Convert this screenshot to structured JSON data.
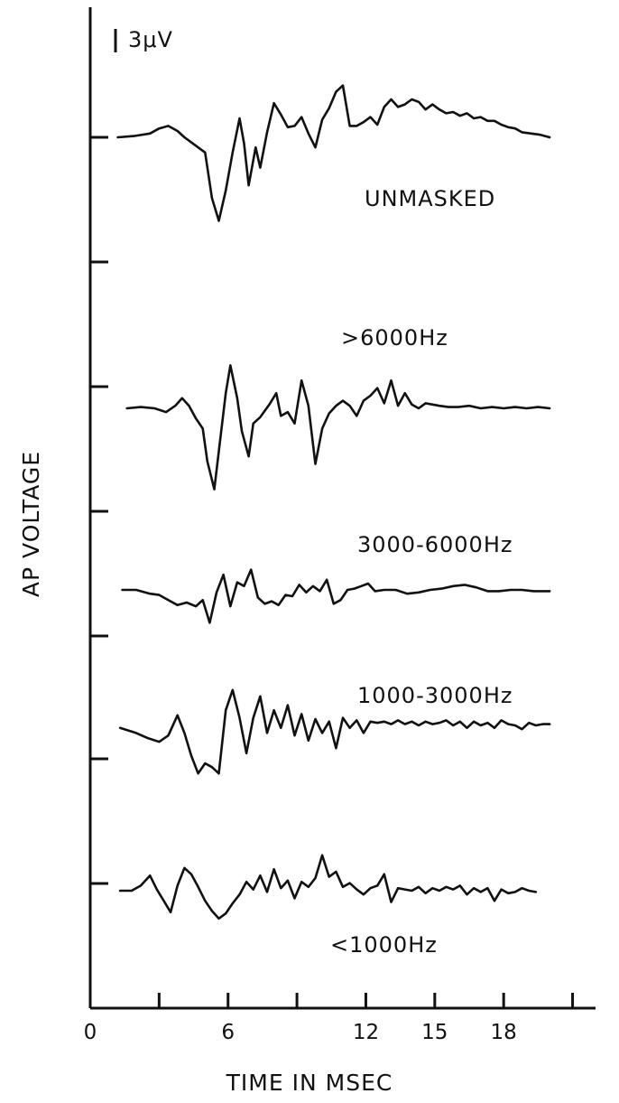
{
  "chart_data": {
    "type": "line",
    "title": "",
    "xlabel": "TIME IN MSEC",
    "ylabel": "AP VOLTAGE",
    "scale_bar": "3μV",
    "xlim": [
      0,
      22
    ],
    "x_ticks": [
      0,
      3,
      6,
      9,
      12,
      15,
      18,
      21
    ],
    "x_tick_labels": [
      "0",
      "",
      "6",
      "",
      "12",
      "15",
      "18",
      ""
    ],
    "grid": false,
    "legend": "none",
    "series": [
      {
        "name": "UNMASKED",
        "x": [
          1.2,
          1.9,
          2.6,
          3.0,
          3.4,
          3.8,
          4.1,
          4.4,
          4.7,
          5.0,
          5.3,
          5.6,
          5.9,
          6.2,
          6.5,
          6.7,
          6.9,
          7.2,
          7.4,
          7.7,
          8.0,
          8.3,
          8.6,
          8.9,
          9.2,
          9.5,
          9.8,
          10.1,
          10.4,
          10.7,
          11.0,
          11.3,
          11.6,
          11.9,
          12.2,
          12.5,
          12.8,
          13.1,
          13.4,
          13.7,
          14.0,
          14.3,
          14.6,
          14.9,
          15.2,
          15.5,
          15.8,
          16.1,
          16.4,
          16.7,
          17.0,
          17.3,
          17.6,
          17.9,
          18.2,
          18.5,
          18.8,
          19.2,
          19.6,
          20.0
        ],
        "values": [
          0.0,
          0.1,
          0.3,
          0.7,
          0.9,
          0.5,
          0.0,
          -0.4,
          -0.8,
          -1.2,
          -4.8,
          -6.6,
          -4.2,
          -1.2,
          1.5,
          -0.5,
          -3.8,
          -0.8,
          -2.4,
          0.4,
          2.7,
          1.8,
          0.8,
          0.9,
          1.6,
          0.3,
          -0.8,
          1.4,
          2.3,
          3.6,
          4.1,
          0.9,
          0.9,
          1.2,
          1.6,
          1.0,
          2.4,
          3.0,
          2.4,
          2.6,
          3.0,
          2.8,
          2.2,
          2.6,
          2.2,
          1.9,
          2.0,
          1.7,
          1.9,
          1.5,
          1.6,
          1.3,
          1.3,
          1.0,
          0.8,
          0.7,
          0.4,
          0.3,
          0.2,
          0.0
        ]
      },
      {
        "name": ">6000Hz",
        "x": [
          1.6,
          2.2,
          2.8,
          3.3,
          3.7,
          4.0,
          4.3,
          4.6,
          4.9,
          5.1,
          5.4,
          5.6,
          5.9,
          6.1,
          6.4,
          6.6,
          6.9,
          7.1,
          7.4,
          7.8,
          8.1,
          8.3,
          8.6,
          8.9,
          9.2,
          9.5,
          9.8,
          10.1,
          10.4,
          10.7,
          11.0,
          11.3,
          11.6,
          11.9,
          12.2,
          12.5,
          12.8,
          13.1,
          13.4,
          13.7,
          14.0,
          14.3,
          14.6,
          14.9,
          15.2,
          15.6,
          16.0,
          16.5,
          17.0,
          17.5,
          18.0,
          18.5,
          19.0,
          19.5,
          20.0
        ],
        "values": [
          0.0,
          0.1,
          0.0,
          -0.3,
          0.2,
          0.8,
          0.2,
          -0.8,
          -1.6,
          -4.2,
          -6.4,
          -3.4,
          1.2,
          3.4,
          0.8,
          -1.8,
          -3.8,
          -1.2,
          -0.7,
          0.3,
          1.2,
          -0.6,
          -0.3,
          -1.2,
          2.2,
          0.2,
          -4.4,
          -1.6,
          -0.4,
          0.2,
          0.6,
          0.2,
          -0.6,
          0.6,
          1.0,
          1.6,
          0.4,
          2.2,
          0.2,
          1.2,
          0.3,
          0.0,
          0.4,
          0.3,
          0.2,
          0.1,
          0.1,
          0.2,
          0.0,
          0.1,
          0.0,
          0.1,
          0.0,
          0.1,
          0.0
        ]
      },
      {
        "name": "3000-6000Hz",
        "x": [
          1.4,
          2.0,
          2.6,
          3.0,
          3.4,
          3.8,
          4.2,
          4.6,
          4.9,
          5.2,
          5.5,
          5.8,
          6.1,
          6.4,
          6.7,
          7.0,
          7.3,
          7.6,
          7.9,
          8.2,
          8.5,
          8.8,
          9.1,
          9.4,
          9.7,
          10.0,
          10.3,
          10.6,
          10.9,
          11.2,
          11.5,
          11.8,
          12.1,
          12.4,
          12.8,
          13.3,
          13.8,
          14.3,
          14.8,
          15.3,
          15.8,
          16.3,
          16.8,
          17.3,
          17.8,
          18.3,
          18.8,
          19.3,
          20.0
        ],
        "values": [
          0.0,
          0.0,
          -0.3,
          -0.4,
          -0.8,
          -1.2,
          -1.0,
          -1.3,
          -0.8,
          -2.6,
          -0.2,
          1.2,
          -1.3,
          0.6,
          0.3,
          1.6,
          -0.6,
          -1.1,
          -0.9,
          -1.2,
          -0.4,
          -0.5,
          0.4,
          -0.2,
          0.3,
          -0.1,
          0.8,
          -1.1,
          -0.8,
          0.0,
          0.1,
          0.3,
          0.5,
          -0.1,
          0.0,
          0.0,
          -0.3,
          -0.2,
          0.0,
          0.1,
          0.3,
          0.4,
          0.2,
          -0.1,
          -0.1,
          0.0,
          0.0,
          -0.1,
          -0.1
        ]
      },
      {
        "name": "1000-3000Hz",
        "x": [
          1.3,
          2.0,
          2.5,
          3.0,
          3.4,
          3.8,
          4.1,
          4.4,
          4.7,
          5.0,
          5.3,
          5.6,
          5.9,
          6.2,
          6.5,
          6.8,
          7.1,
          7.4,
          7.7,
          8.0,
          8.3,
          8.6,
          8.9,
          9.2,
          9.5,
          9.8,
          10.1,
          10.4,
          10.7,
          11.0,
          11.3,
          11.6,
          11.9,
          12.2,
          12.5,
          12.8,
          13.1,
          13.4,
          13.7,
          14.0,
          14.3,
          14.6,
          14.9,
          15.2,
          15.5,
          15.8,
          16.1,
          16.4,
          16.7,
          17.0,
          17.3,
          17.6,
          17.9,
          18.2,
          18.5,
          18.8,
          19.1,
          19.4,
          19.7,
          20.0
        ],
        "values": [
          -0.2,
          -0.6,
          -1.0,
          -1.3,
          -0.8,
          0.8,
          -0.6,
          -2.4,
          -3.8,
          -3.0,
          -3.3,
          -3.8,
          1.2,
          2.8,
          0.6,
          -2.2,
          0.6,
          2.3,
          -0.6,
          1.2,
          -0.2,
          1.6,
          -0.8,
          0.9,
          -1.2,
          0.5,
          -0.6,
          0.3,
          -1.8,
          0.6,
          -0.2,
          0.4,
          -0.6,
          0.3,
          0.2,
          0.3,
          0.1,
          0.4,
          0.1,
          0.3,
          0.0,
          0.3,
          0.1,
          0.2,
          0.4,
          0.0,
          0.3,
          -0.2,
          0.3,
          0.0,
          0.2,
          -0.2,
          0.4,
          0.1,
          0.0,
          -0.3,
          0.2,
          0.0,
          0.1,
          0.1
        ]
      },
      {
        "name": "<1000Hz",
        "x": [
          1.3,
          1.8,
          2.2,
          2.6,
          2.9,
          3.2,
          3.5,
          3.8,
          4.1,
          4.4,
          4.7,
          5.0,
          5.3,
          5.6,
          5.9,
          6.2,
          6.5,
          6.8,
          7.1,
          7.4,
          7.7,
          8.0,
          8.3,
          8.6,
          8.9,
          9.2,
          9.5,
          9.8,
          10.1,
          10.4,
          10.7,
          11.0,
          11.3,
          11.6,
          11.9,
          12.2,
          12.5,
          12.8,
          13.1,
          13.4,
          13.7,
          14.0,
          14.3,
          14.6,
          14.9,
          15.2,
          15.5,
          15.8,
          16.1,
          16.4,
          16.7,
          17.0,
          17.3,
          17.6,
          17.9,
          18.2,
          18.5,
          18.8,
          19.1,
          19.4
        ],
        "values": [
          0.0,
          0.0,
          0.4,
          1.2,
          0.1,
          -0.8,
          -1.7,
          0.4,
          1.8,
          1.3,
          0.3,
          -0.8,
          -1.6,
          -2.2,
          -1.8,
          -1.0,
          -0.3,
          0.7,
          0.1,
          1.2,
          -0.1,
          1.7,
          0.2,
          0.8,
          -0.6,
          0.7,
          0.3,
          1.0,
          2.8,
          1.1,
          1.5,
          0.3,
          0.6,
          0.1,
          -0.3,
          0.2,
          0.4,
          1.3,
          -0.9,
          0.2,
          0.1,
          0.0,
          0.3,
          -0.2,
          0.2,
          0.0,
          0.3,
          0.1,
          0.4,
          -0.3,
          0.2,
          -0.1,
          0.2,
          -0.8,
          0.1,
          -0.2,
          -0.1,
          0.2,
          0.0,
          -0.1
        ]
      }
    ]
  }
}
